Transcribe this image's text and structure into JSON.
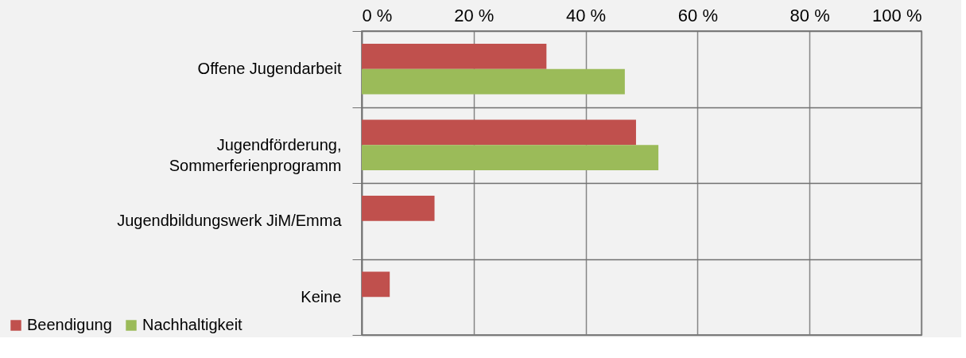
{
  "chart_data": {
    "type": "bar",
    "orientation": "horizontal",
    "categories": [
      "Offene Jugendarbeit",
      "Jugendförderung,\nSommerferienprogramm",
      "Jugendbildungswerk JiM/Emma",
      "Keine"
    ],
    "series": [
      {
        "name": "Beendigung",
        "color": "#c0504d",
        "values": [
          33,
          49,
          13,
          5
        ]
      },
      {
        "name": "Nachhaltigkeit",
        "color": "#9bbb59",
        "values": [
          47,
          53,
          null,
          null
        ]
      }
    ],
    "xlim": [
      0,
      100
    ],
    "xticks": [
      {
        "value": 0,
        "label": "0 %"
      },
      {
        "value": 20,
        "label": "20 %"
      },
      {
        "value": 40,
        "label": "40 %"
      },
      {
        "value": 60,
        "label": "60 %"
      },
      {
        "value": 80,
        "label": "80 %"
      },
      {
        "value": 100,
        "label": "100 %"
      }
    ],
    "grid": true,
    "legend": "bottom left"
  }
}
